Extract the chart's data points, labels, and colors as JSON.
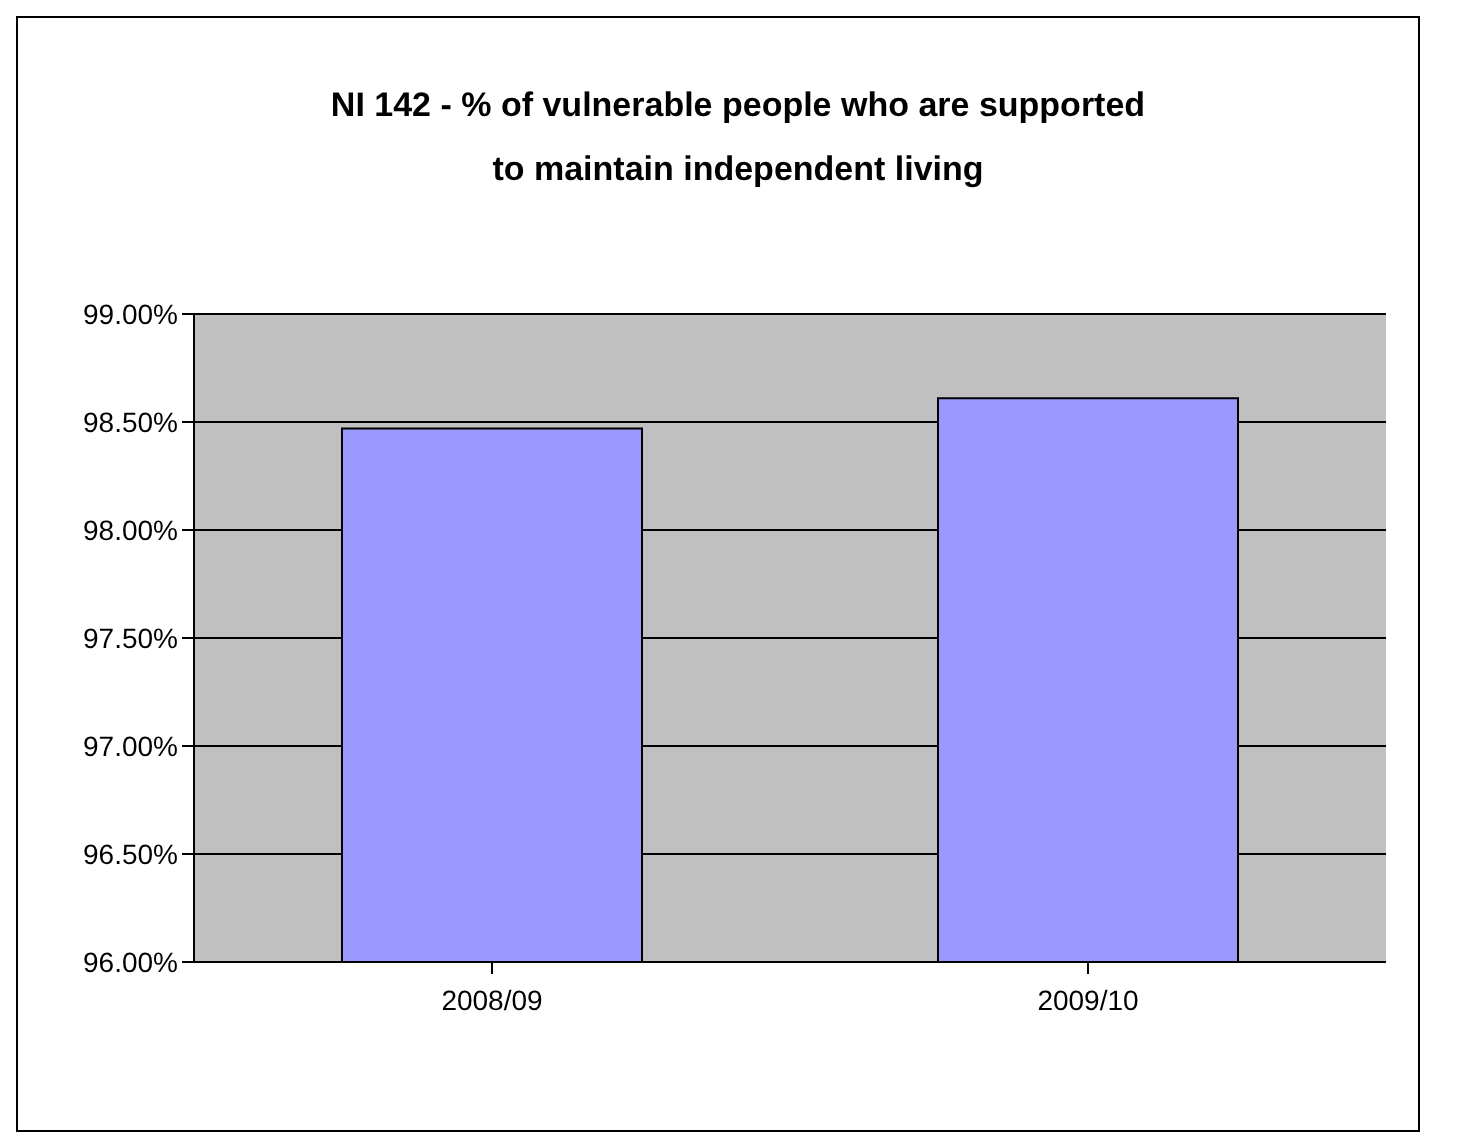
{
  "chart_data": {
    "type": "bar",
    "title": "NI 142 - % of vulnerable people who are supported to maintain independent living",
    "categories": [
      "2008/09",
      "2009/10"
    ],
    "values": [
      98.47,
      98.61
    ],
    "color": "#9999ff",
    "ylim": [
      96,
      99
    ],
    "yticks": [
      {
        "value": 96,
        "label": "96.00%"
      },
      {
        "value": 96.5,
        "label": "96.50%"
      },
      {
        "value": 97,
        "label": "97.00%"
      },
      {
        "value": 97.5,
        "label": "97.50%"
      },
      {
        "value": 98,
        "label": "98.00%"
      },
      {
        "value": 98.5,
        "label": "98.50%"
      },
      {
        "value": 99,
        "label": "99.00%"
      }
    ],
    "grid": "y",
    "legend": false
  }
}
